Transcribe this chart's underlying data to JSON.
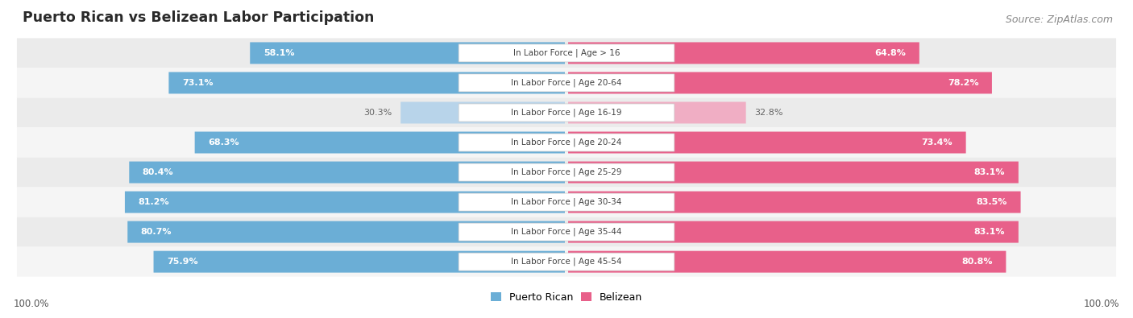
{
  "title": "Puerto Rican vs Belizean Labor Participation",
  "source": "Source: ZipAtlas.com",
  "categories": [
    "In Labor Force | Age > 16",
    "In Labor Force | Age 20-64",
    "In Labor Force | Age 16-19",
    "In Labor Force | Age 20-24",
    "In Labor Force | Age 25-29",
    "In Labor Force | Age 30-34",
    "In Labor Force | Age 35-44",
    "In Labor Force | Age 45-54"
  ],
  "puerto_rican": [
    58.1,
    73.1,
    30.3,
    68.3,
    80.4,
    81.2,
    80.7,
    75.9
  ],
  "belizean": [
    64.8,
    78.2,
    32.8,
    73.4,
    83.1,
    83.5,
    83.1,
    80.8
  ],
  "blue_color": "#6baed6",
  "blue_light_color": "#b8d4ea",
  "pink_color": "#e8608a",
  "pink_light_color": "#f0aec4",
  "row_bg_odd": "#ebebeb",
  "row_bg_even": "#f5f5f5",
  "background_color": "#ffffff",
  "center_label_color": "#444444",
  "white_text": "#ffffff",
  "dark_text": "#666666",
  "legend_blue": "#6baed6",
  "legend_pink": "#e8608a",
  "footer_label": "100.0%",
  "legend_label_blue": "Puerto Rican",
  "legend_label_pink": "Belizean"
}
